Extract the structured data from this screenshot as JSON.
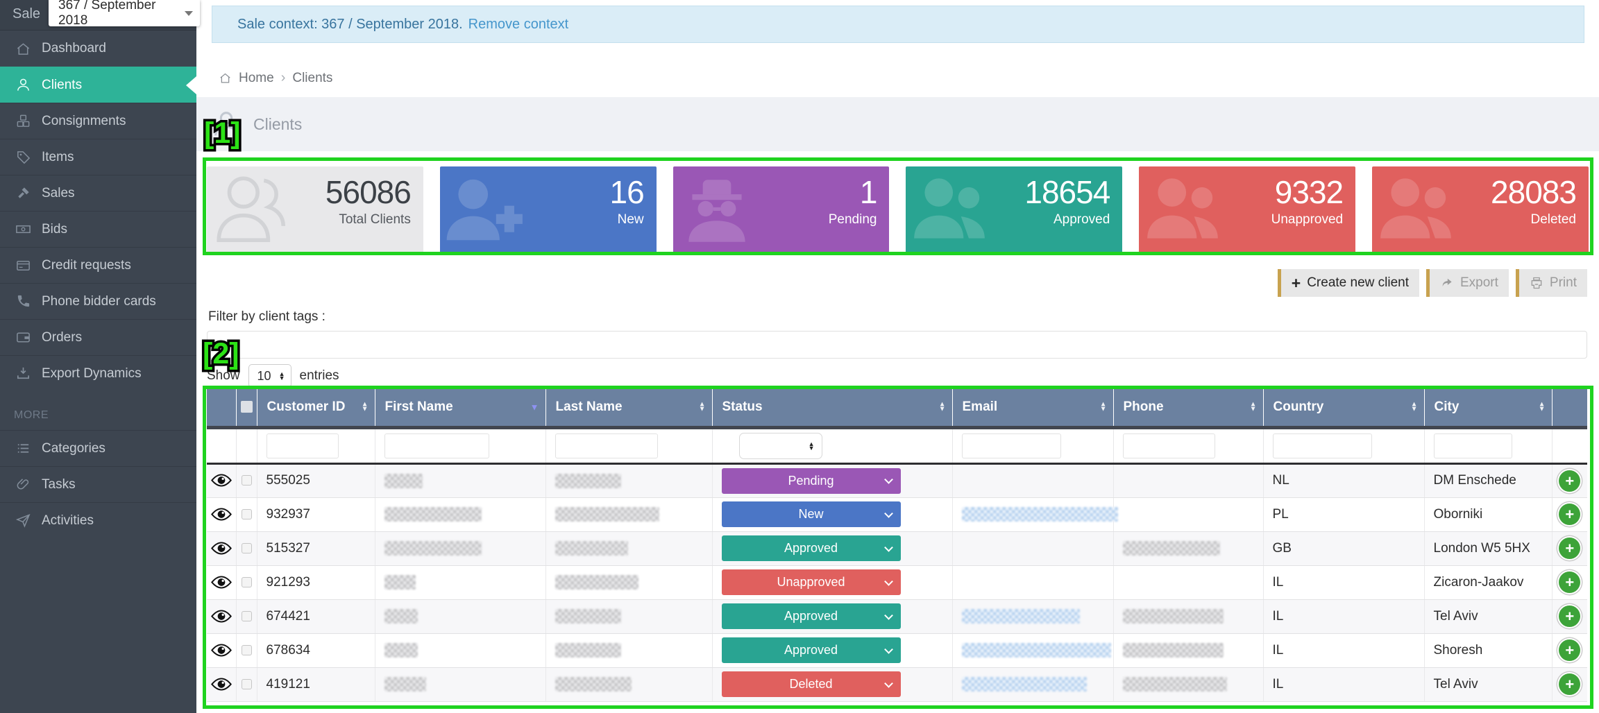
{
  "topbar": {
    "sale_label": "Sale",
    "sale_value": "367 / September 2018"
  },
  "banner": {
    "text": "Sale context: 367 / September 2018.",
    "link_label": "Remove context"
  },
  "sidebar": {
    "items": [
      {
        "icon": "home",
        "label": "Dashboard",
        "active": false
      },
      {
        "icon": "user",
        "label": "Clients",
        "active": true
      },
      {
        "icon": "boxes",
        "label": "Consignments",
        "active": false
      },
      {
        "icon": "tag",
        "label": "Items",
        "active": false
      },
      {
        "icon": "gavel",
        "label": "Sales",
        "active": false
      },
      {
        "icon": "note",
        "label": "Bids",
        "active": false
      },
      {
        "icon": "card",
        "label": "Credit requests",
        "active": false
      },
      {
        "icon": "phone",
        "label": "Phone bidder cards",
        "active": false
      },
      {
        "icon": "wallet",
        "label": "Orders",
        "active": false
      },
      {
        "icon": "download",
        "label": "Export Dynamics",
        "active": false
      }
    ],
    "more_label": "MORE",
    "more_items": [
      {
        "icon": "list",
        "label": "Categories",
        "active": false
      },
      {
        "icon": "clip",
        "label": "Tasks",
        "active": false
      },
      {
        "icon": "send",
        "label": "Activities",
        "active": false
      }
    ]
  },
  "breadcrumb": {
    "home": "Home",
    "separator": "›",
    "current": "Clients"
  },
  "page": {
    "title": "Clients"
  },
  "stats": {
    "cards": [
      {
        "label": "Total Clients",
        "value": "56086",
        "variant": "total",
        "icon": "users-outline"
      },
      {
        "label": "New",
        "value": "16",
        "variant": "new",
        "icon": "user-plus"
      },
      {
        "label": "Pending",
        "value": "1",
        "variant": "pending",
        "icon": "spy"
      },
      {
        "label": "Approved",
        "value": "18654",
        "variant": "approved",
        "icon": "group"
      },
      {
        "label": "Unapproved",
        "value": "9332",
        "variant": "unapproved",
        "icon": "group"
      },
      {
        "label": "Deleted",
        "value": "28083",
        "variant": "deleted",
        "icon": "group"
      }
    ],
    "colors": {
      "total": "#e8e8ea",
      "new": "#4b76c6",
      "pending": "#9a57b5",
      "approved": "#29a492",
      "unapproved": "#e0605e",
      "deleted": "#e0605e"
    }
  },
  "toolbar": {
    "create_label": "Create new client",
    "export_label": "Export",
    "print_label": "Print"
  },
  "filters": {
    "tags_label": "Filter by client tags :",
    "show_label": "Show",
    "page_size": "10",
    "entries_label": "entries"
  },
  "table": {
    "columns": [
      {
        "label": "Customer ID",
        "sort": "both"
      },
      {
        "label": "First Name",
        "sort": "desc"
      },
      {
        "label": "Last Name",
        "sort": "both"
      },
      {
        "label": "Status",
        "sort": "both"
      },
      {
        "label": "Email",
        "sort": "both"
      },
      {
        "label": "Phone",
        "sort": "both"
      },
      {
        "label": "Country",
        "sort": "both"
      },
      {
        "label": "City",
        "sort": "both"
      }
    ],
    "rows": [
      {
        "customer_id": "555025",
        "first_name_blur": 55,
        "last_name_blur": 95,
        "status": "Pending",
        "email_blur": 0,
        "phone_blur": 0,
        "country": "NL",
        "city": "DM Enschede"
      },
      {
        "customer_id": "932937",
        "first_name_blur": 140,
        "last_name_blur": 150,
        "status": "New",
        "email_blur": 225,
        "phone_blur": 0,
        "country": "PL",
        "city": "Oborniki"
      },
      {
        "customer_id": "515327",
        "first_name_blur": 140,
        "last_name_blur": 105,
        "status": "Approved",
        "email_blur": 0,
        "phone_blur": 140,
        "country": "GB",
        "city": "London W5 5HX"
      },
      {
        "customer_id": "921293",
        "first_name_blur": 45,
        "last_name_blur": 120,
        "status": "Unapproved",
        "email_blur": 0,
        "phone_blur": 0,
        "country": "IL",
        "city": "Zicaron-Jaakov"
      },
      {
        "customer_id": "674421",
        "first_name_blur": 48,
        "last_name_blur": 95,
        "status": "Approved",
        "email_blur": 170,
        "phone_blur": 145,
        "country": "IL",
        "city": "Tel Aviv"
      },
      {
        "customer_id": "678634",
        "first_name_blur": 48,
        "last_name_blur": 95,
        "status": "Approved",
        "email_blur": 215,
        "phone_blur": 145,
        "country": "IL",
        "city": "Shoresh"
      },
      {
        "customer_id": "419121",
        "first_name_blur": 60,
        "last_name_blur": 110,
        "status": "Deleted",
        "email_blur": 180,
        "phone_blur": 150,
        "country": "IL",
        "city": "Tel Aviv"
      }
    ]
  },
  "status_colors": {
    "Pending": "#9a57b5",
    "New": "#4b76c6",
    "Approved": "#29a492",
    "Unapproved": "#e0605e",
    "Deleted": "#e0605e"
  },
  "annotations": {
    "label1": "[1]",
    "label2": "[2]"
  }
}
